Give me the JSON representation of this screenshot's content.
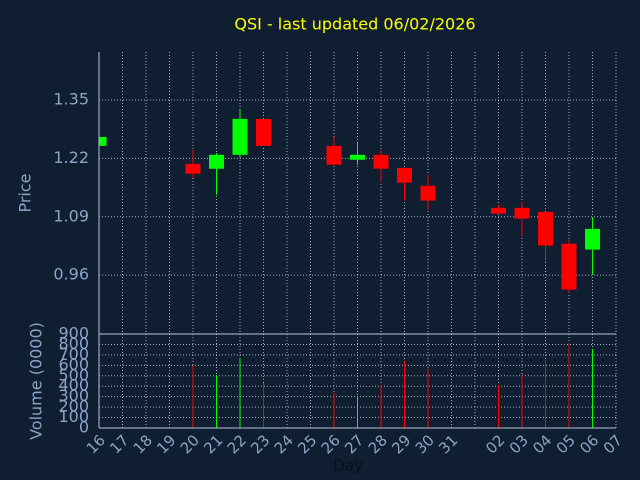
{
  "chart_data": {
    "type": "candlestick",
    "title": "QSI - last updated 06/02/2026",
    "xlabel": "Day",
    "ylabel": "Price",
    "categories": [
      "16",
      "17",
      "18",
      "19",
      "20",
      "21",
      "22",
      "23",
      "24",
      "25",
      "26",
      "27",
      "28",
      "29",
      "30",
      "31",
      null,
      "02",
      "03",
      "04",
      "05",
      "06",
      "07"
    ],
    "open": [
      1.248,
      null,
      null,
      null,
      1.208,
      1.197,
      1.228,
      1.308,
      null,
      null,
      1.248,
      1.217,
      1.228,
      1.199,
      1.159,
      null,
      null,
      1.11,
      1.11,
      1.101,
      1.03,
      1.017,
      null
    ],
    "high": [
      1.27,
      null,
      null,
      null,
      1.239,
      1.232,
      1.328,
      1.308,
      null,
      null,
      1.268,
      1.257,
      1.239,
      1.199,
      1.183,
      null,
      null,
      1.117,
      1.123,
      1.101,
      1.039,
      1.088,
      null
    ],
    "low": [
      1.245,
      null,
      null,
      null,
      1.177,
      1.139,
      1.223,
      1.248,
      null,
      null,
      1.206,
      1.206,
      1.166,
      1.126,
      1.106,
      null,
      null,
      1.097,
      1.046,
      0.99,
      0.921,
      0.961,
      null
    ],
    "close": [
      1.268,
      null,
      null,
      null,
      1.186,
      1.228,
      1.308,
      1.248,
      null,
      null,
      1.206,
      1.228,
      1.197,
      1.166,
      1.126,
      null,
      null,
      1.097,
      1.086,
      1.026,
      0.928,
      1.063,
      null
    ],
    "ylim": [
      0.829,
      1.457
    ],
    "yticks": [
      0.96,
      1.09,
      1.22,
      1.35
    ],
    "up_color": "#00ff00",
    "down_color": "#ff0000",
    "grid": true,
    "volume": {
      "type": "bar",
      "ylabel": "Volume (0000)",
      "values": [
        0,
        null,
        null,
        null,
        594,
        507,
        670,
        431,
        null,
        null,
        335,
        297,
        412,
        641,
        565,
        null,
        null,
        412,
        517,
        651,
        814,
        756,
        null
      ],
      "ylim": [
        0,
        900
      ],
      "yticks": [
        0,
        100,
        200,
        300,
        400,
        500,
        600,
        700,
        800,
        900
      ]
    }
  }
}
